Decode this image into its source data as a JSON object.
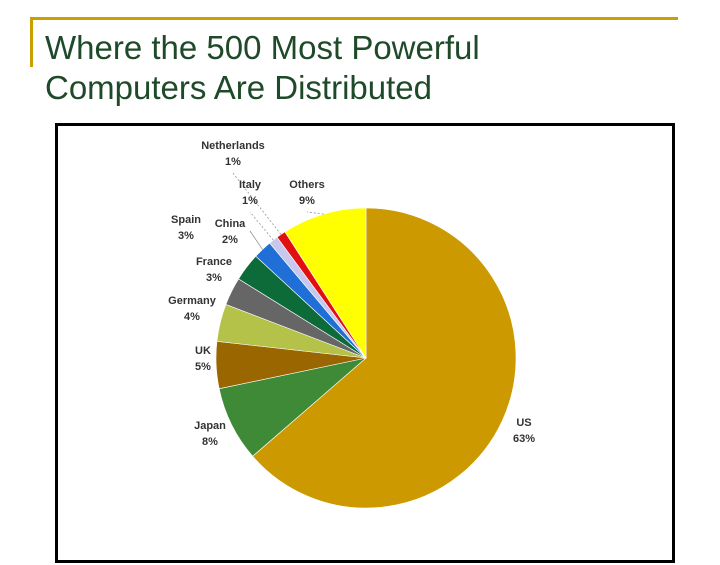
{
  "slide": {
    "title_line1": "Where the 500 Most Powerful",
    "title_line2": "Computers Are Distributed"
  },
  "colors": {
    "accent": "#c8a000",
    "title": "#1f4a2a"
  },
  "chart_data": {
    "type": "pie",
    "title": "",
    "slices": [
      {
        "label": "US",
        "value": 63,
        "display": "63%",
        "color": "#cc9900"
      },
      {
        "label": "Japan",
        "value": 8,
        "display": "8%",
        "color": "#3f8a36"
      },
      {
        "label": "UK",
        "value": 5,
        "display": "5%",
        "color": "#996600"
      },
      {
        "label": "Germany",
        "value": 4,
        "display": "4%",
        "color": "#b5c24a"
      },
      {
        "label": "France",
        "value": 3,
        "display": "3%",
        "color": "#666666"
      },
      {
        "label": "Spain",
        "value": 3,
        "display": "3%",
        "color": "#0d6b3a"
      },
      {
        "label": "China",
        "value": 2,
        "display": "2%",
        "color": "#1f6fd6"
      },
      {
        "label": "Italy",
        "value": 1,
        "display": "1%",
        "color": "#c8c8ee"
      },
      {
        "label": "Netherlands",
        "value": 1,
        "display": "1%",
        "color": "#e01010"
      },
      {
        "label": "Others",
        "value": 9,
        "display": "9%",
        "color": "#ffff00"
      }
    ]
  }
}
